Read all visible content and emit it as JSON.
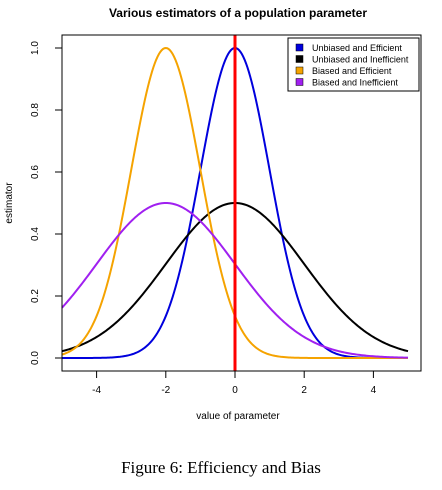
{
  "chart_data": {
    "type": "line",
    "title": "Various estimators of a population parameter",
    "xlabel": "value of parameter",
    "ylabel": "estimator",
    "xlim": [
      -5,
      5
    ],
    "ylim": [
      0,
      1
    ],
    "x_ticks": [
      "-4",
      "-2",
      "0",
      "2",
      "4"
    ],
    "y_ticks": [
      "0.0",
      "0.2",
      "0.4",
      "0.6",
      "0.8",
      "1.0"
    ],
    "grid": false,
    "legend_position": "top-right",
    "vertical_line": {
      "x": 0,
      "color": "#ff0000"
    },
    "series": [
      {
        "name": "Unbiased and Efficient",
        "color": "#0000dd",
        "mean": 0,
        "sd": 1,
        "peak": 1.0
      },
      {
        "name": "Unbiased and Inefficient",
        "color": "#000000",
        "mean": 0,
        "sd": 2,
        "peak": 0.5
      },
      {
        "name": "Biased and Efficient",
        "color": "#f5a300",
        "mean": -2,
        "sd": 1,
        "peak": 1.0
      },
      {
        "name": "Biased and Inefficient",
        "color": "#a020f0",
        "mean": -2,
        "sd": 2,
        "peak": 0.5
      }
    ]
  },
  "caption": "Figure 6:  Efficiency and Bias"
}
